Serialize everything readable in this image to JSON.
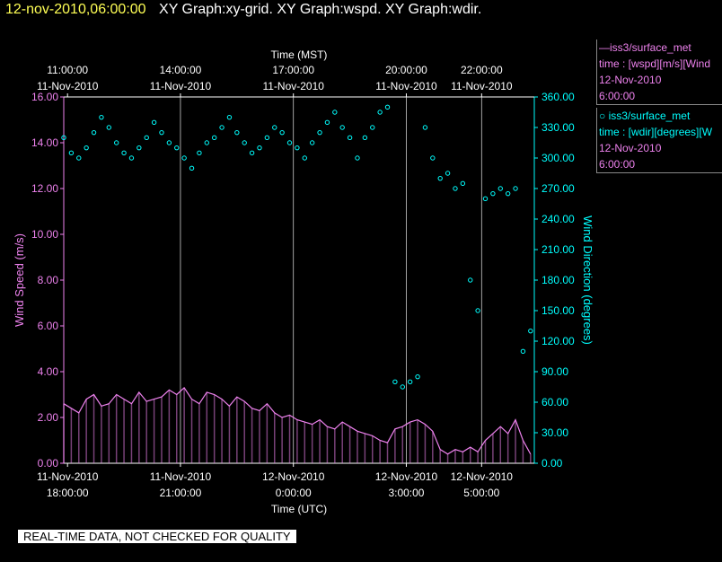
{
  "header": {
    "datetime": "12-nov-2010,06:00:00",
    "title": "XY Graph:xy-grid.  XY Graph:wspd.  XY Graph:wdir."
  },
  "legend": {
    "wspd": {
      "name": "iss3/surface_met",
      "desc": "time : [wspd][m/s][Wind",
      "date": "12-Nov-2010",
      "time": "6:00:00"
    },
    "wdir": {
      "name": "iss3/surface_met",
      "desc": "time : [wdir][degrees][W",
      "date": "12-Nov-2010",
      "time": "6:00:00"
    }
  },
  "footer": {
    "quality_note": "REAL-TIME DATA, NOT CHECKED FOR QUALITY"
  },
  "colors": {
    "wspd": "#ee82ee",
    "wdir": "#00ffff",
    "grid": "#ffffff",
    "background": "#000000"
  },
  "chart_data": {
    "type": "line",
    "xlabel_top": "Time (MST)",
    "xlabel_bottom": "Time (UTC)",
    "ylabel_left": "Wind Speed (m/s)",
    "ylabel_right": "Wind Direction (degrees)",
    "xlim_utc_hours": [
      17.9,
      30.4
    ],
    "ylim_left": [
      0,
      16
    ],
    "ylim_right": [
      0,
      360
    ],
    "grid": true,
    "left_ticks": [
      "0.00",
      "2.00",
      "4.00",
      "6.00",
      "8.00",
      "10.00",
      "12.00",
      "14.00",
      "16.00"
    ],
    "right_ticks": [
      "0.00",
      "30.00",
      "60.00",
      "90.00",
      "120.00",
      "150.00",
      "180.00",
      "210.00",
      "240.00",
      "270.00",
      "300.00",
      "330.00",
      "360.00"
    ],
    "x_ticks_top": [
      {
        "x": 18,
        "line1": "11:00:00",
        "line2": "11-Nov-2010"
      },
      {
        "x": 21,
        "line1": "14:00:00",
        "line2": "11-Nov-2010"
      },
      {
        "x": 24,
        "line1": "17:00:00",
        "line2": "11-Nov-2010"
      },
      {
        "x": 27,
        "line1": "20:00:00",
        "line2": "11-Nov-2010"
      },
      {
        "x": 29,
        "line1": "22:00:00",
        "line2": "11-Nov-2010"
      }
    ],
    "x_ticks_bottom": [
      {
        "x": 18,
        "line1": "11-Nov-2010",
        "line2": "18:00:00"
      },
      {
        "x": 21,
        "line1": "11-Nov-2010",
        "line2": "21:00:00"
      },
      {
        "x": 24,
        "line1": "12-Nov-2010",
        "line2": "0:00:00"
      },
      {
        "x": 27,
        "line1": "12-Nov-2010",
        "line2": "3:00:00"
      },
      {
        "x": 29,
        "line1": "12-Nov-2010",
        "line2": "5:00:00"
      }
    ],
    "series": [
      {
        "name": "iss3/surface_met",
        "variable": "wspd",
        "axis": "left",
        "style": "line",
        "x": [
          17.9,
          18.1,
          18.3,
          18.5,
          18.7,
          18.9,
          19.1,
          19.3,
          19.5,
          19.7,
          19.9,
          20.1,
          20.3,
          20.5,
          20.7,
          20.9,
          21.1,
          21.3,
          21.5,
          21.7,
          21.9,
          22.1,
          22.3,
          22.5,
          22.7,
          22.9,
          23.1,
          23.3,
          23.5,
          23.7,
          23.9,
          24.1,
          24.3,
          24.5,
          24.7,
          24.9,
          25.1,
          25.3,
          25.5,
          25.7,
          25.9,
          26.1,
          26.3,
          26.5,
          26.7,
          26.9,
          27.1,
          27.3,
          27.5,
          27.7,
          27.9,
          28.1,
          28.3,
          28.5,
          28.7,
          28.9,
          29.1,
          29.3,
          29.5,
          29.7,
          29.9,
          30.1,
          30.3
        ],
        "values": [
          2.6,
          2.4,
          2.2,
          2.8,
          3.0,
          2.5,
          2.6,
          3.0,
          2.8,
          2.6,
          3.1,
          2.7,
          2.8,
          2.9,
          3.2,
          3.0,
          3.3,
          2.8,
          2.6,
          3.1,
          3.0,
          2.8,
          2.5,
          2.9,
          2.7,
          2.4,
          2.3,
          2.6,
          2.2,
          2.0,
          2.1,
          1.9,
          1.8,
          1.7,
          1.9,
          1.6,
          1.5,
          1.8,
          1.6,
          1.4,
          1.3,
          1.2,
          1.0,
          0.9,
          1.5,
          1.6,
          1.8,
          1.9,
          1.7,
          1.4,
          0.6,
          0.4,
          0.6,
          0.5,
          0.7,
          0.5,
          1.0,
          1.3,
          1.6,
          1.3,
          1.9,
          1.0,
          0.4
        ]
      },
      {
        "name": "iss3/surface_met",
        "variable": "wdir",
        "axis": "right",
        "style": "circle",
        "x": [
          17.9,
          18.1,
          18.3,
          18.5,
          18.7,
          18.9,
          19.1,
          19.3,
          19.5,
          19.7,
          19.9,
          20.1,
          20.3,
          20.5,
          20.7,
          20.9,
          21.1,
          21.3,
          21.5,
          21.7,
          21.9,
          22.1,
          22.3,
          22.5,
          22.7,
          22.9,
          23.1,
          23.3,
          23.5,
          23.7,
          23.9,
          24.1,
          24.3,
          24.5,
          24.7,
          24.9,
          25.1,
          25.3,
          25.5,
          25.7,
          25.9,
          26.1,
          26.3,
          26.5,
          26.7,
          26.9,
          27.1,
          27.3,
          27.5,
          27.7,
          27.9,
          28.1,
          28.3,
          28.5,
          28.7,
          28.9,
          29.1,
          29.3,
          29.5,
          29.7,
          29.9,
          30.1,
          30.3
        ],
        "values": [
          320,
          305,
          300,
          310,
          325,
          340,
          330,
          315,
          305,
          300,
          310,
          320,
          335,
          325,
          315,
          310,
          300,
          290,
          305,
          315,
          320,
          330,
          340,
          325,
          315,
          305,
          310,
          320,
          330,
          325,
          315,
          310,
          300,
          315,
          325,
          335,
          345,
          330,
          320,
          300,
          320,
          330,
          345,
          350,
          80,
          75,
          80,
          85,
          330,
          300,
          280,
          285,
          270,
          275,
          180,
          150,
          260,
          265,
          270,
          265,
          270,
          110,
          130
        ]
      }
    ]
  }
}
